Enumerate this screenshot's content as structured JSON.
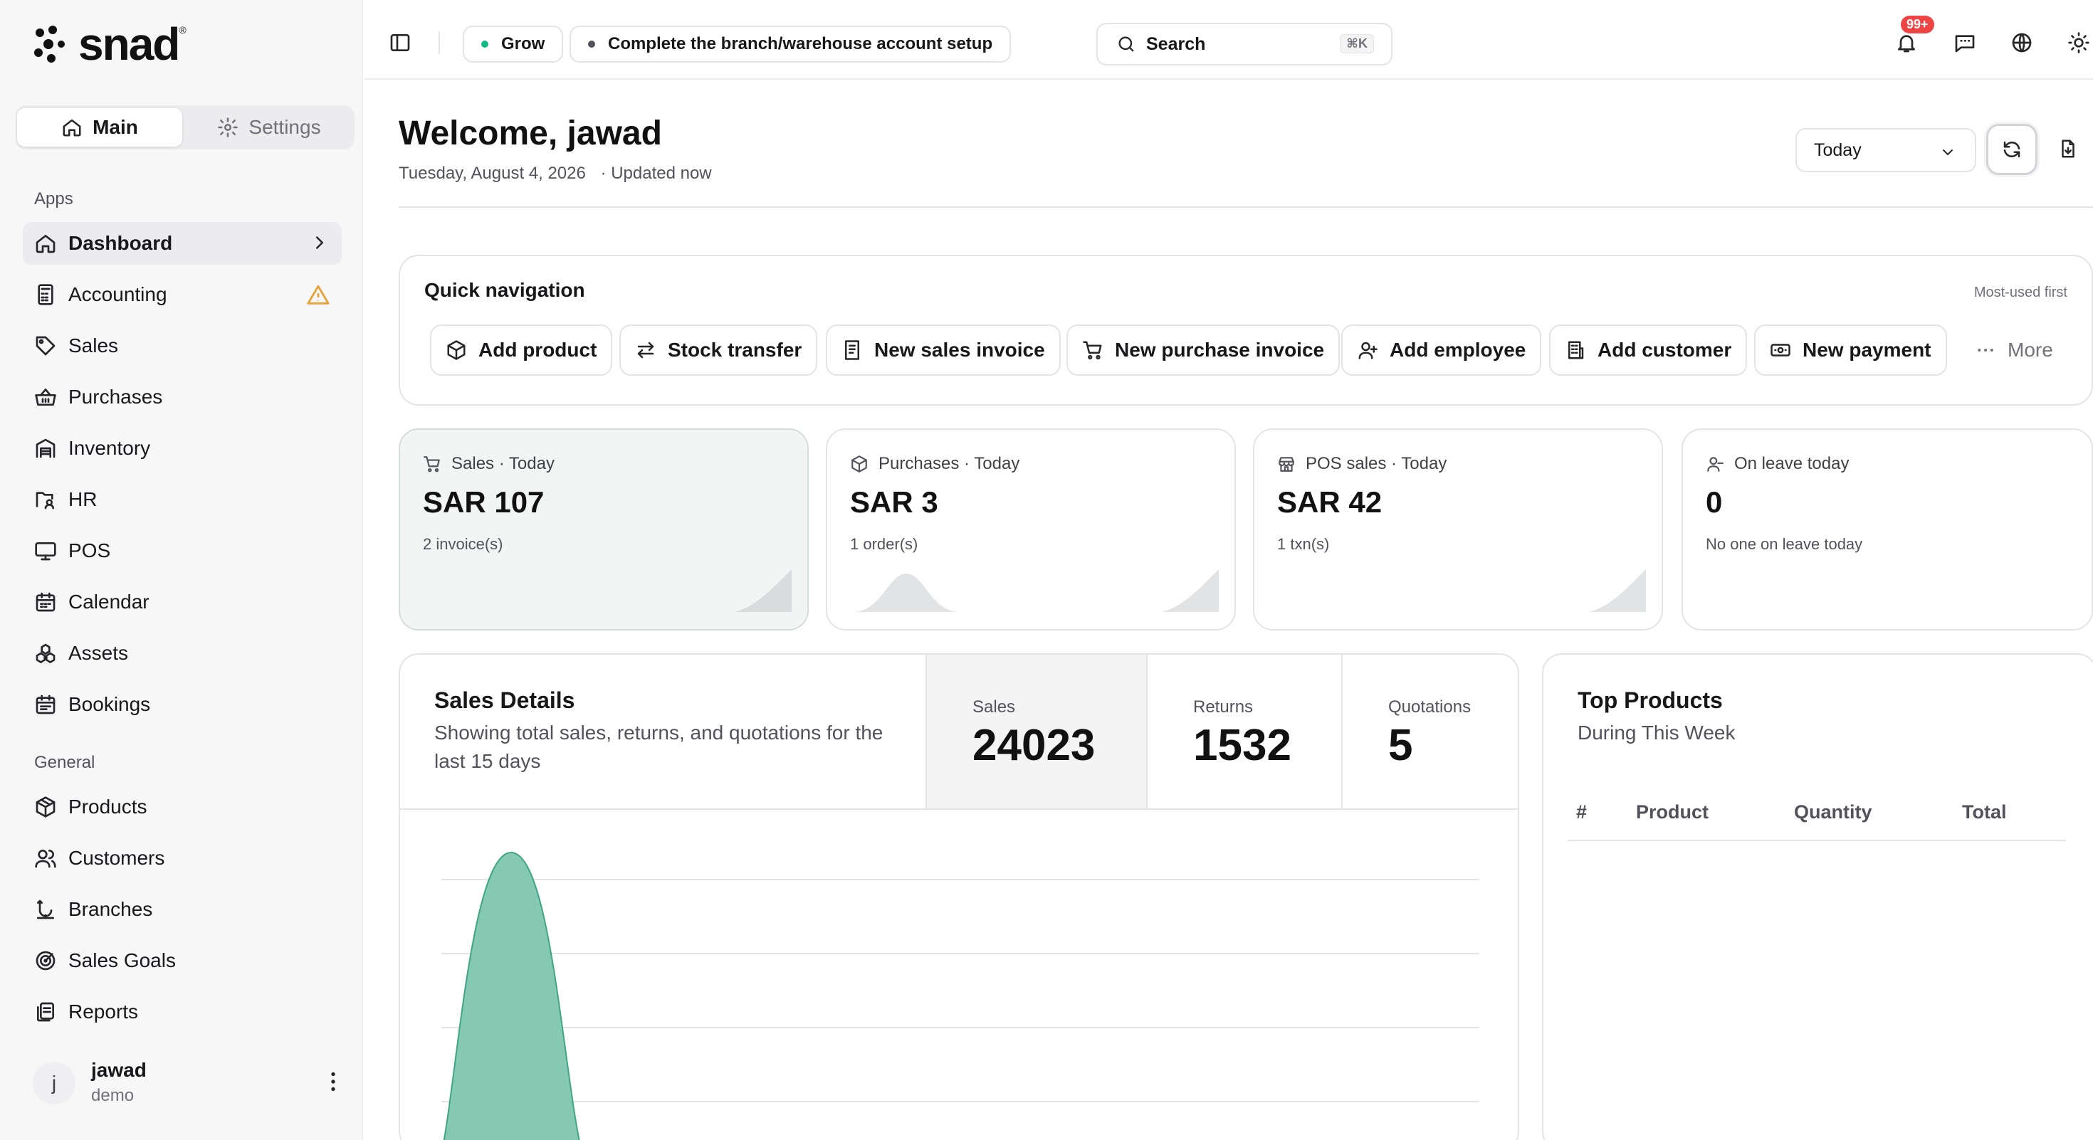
{
  "brand": {
    "name": "snad"
  },
  "sidebar": {
    "tabs": {
      "main": "Main",
      "settings": "Settings"
    },
    "apps_label": "Apps",
    "apps": [
      {
        "label": "Dashboard",
        "icon": "home-icon"
      },
      {
        "label": "Accounting",
        "icon": "calculator-icon"
      },
      {
        "label": "Sales",
        "icon": "tag-icon"
      },
      {
        "label": "Purchases",
        "icon": "basket-icon"
      },
      {
        "label": "Inventory",
        "icon": "warehouse-icon"
      },
      {
        "label": "HR",
        "icon": "users-folder-icon"
      },
      {
        "label": "POS",
        "icon": "monitor-icon"
      },
      {
        "label": "Calendar",
        "icon": "calendar-icon"
      },
      {
        "label": "Assets",
        "icon": "boxes-icon"
      },
      {
        "label": "Bookings",
        "icon": "calendar-check-icon"
      }
    ],
    "general_label": "General",
    "general": [
      {
        "label": "Products",
        "icon": "package-icon"
      },
      {
        "label": "Customers",
        "icon": "users-icon"
      },
      {
        "label": "Branches",
        "icon": "branch-icon"
      },
      {
        "label": "Sales Goals",
        "icon": "target-icon"
      },
      {
        "label": "Reports",
        "icon": "reports-icon"
      }
    ],
    "user": {
      "initial": "j",
      "name": "jawad",
      "role": "demo"
    }
  },
  "topbar": {
    "pill_grow": "Grow",
    "pill_setup": "Complete the branch/warehouse account setup",
    "search_label": "Search",
    "search_shortcut": "⌘K",
    "notif_badge": "99+",
    "accent_green": "#10b981"
  },
  "header": {
    "welcome": "Welcome, jawad",
    "date": "Tuesday, August 4, 2026",
    "updated": "· Updated now",
    "period": "Today"
  },
  "quick_nav": {
    "title": "Quick navigation",
    "hint": "Most-used first",
    "buttons": [
      "Add product",
      "Stock transfer",
      "New sales invoice",
      "New purchase invoice",
      "Add employee",
      "Add customer",
      "New payment"
    ],
    "more": "More"
  },
  "stats": [
    {
      "label": "Sales · Today",
      "value": "SAR 107",
      "sub": "2 invoice(s)"
    },
    {
      "label": "Purchases · Today",
      "value": "SAR 3",
      "sub": "1 order(s)"
    },
    {
      "label": "POS sales · Today",
      "value": "SAR 42",
      "sub": "1 txn(s)"
    },
    {
      "label": "On leave today",
      "value": "0",
      "sub": "No one on leave today"
    }
  ],
  "sales_details": {
    "title": "Sales Details",
    "desc": "Showing total sales, returns, and quotations for the last 15 days",
    "metrics": [
      {
        "label": "Sales",
        "value": "24023"
      },
      {
        "label": "Returns",
        "value": "1532"
      },
      {
        "label": "Quotations",
        "value": "5"
      }
    ],
    "chart_color": "#86c9b3"
  },
  "top_products": {
    "title": "Top Products",
    "subtitle": "During This Week",
    "columns": [
      "#",
      "Product",
      "Quantity",
      "Total"
    ]
  }
}
